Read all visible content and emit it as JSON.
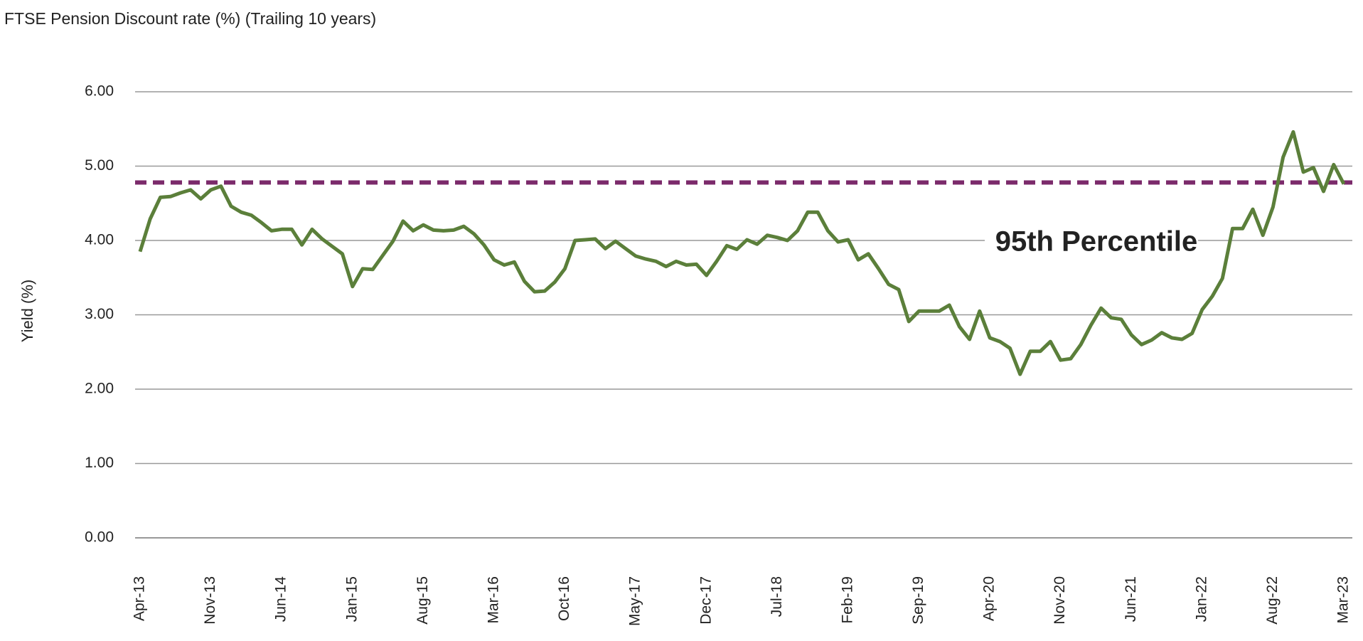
{
  "chart_data": {
    "type": "line",
    "title": "FTSE Pension Discount rate (%) (Trailing 10 years)",
    "y_label": "Yield (%)",
    "categories": [
      "Apr-13",
      null,
      null,
      null,
      null,
      null,
      null,
      "Nov-13",
      null,
      null,
      null,
      null,
      null,
      null,
      "Jun-14",
      null,
      null,
      null,
      null,
      null,
      null,
      "Jan-15",
      null,
      null,
      null,
      null,
      null,
      null,
      "Aug-15",
      null,
      null,
      null,
      null,
      null,
      null,
      "Mar-16",
      null,
      null,
      null,
      null,
      null,
      null,
      "Oct-16",
      null,
      null,
      null,
      null,
      null,
      null,
      "May-17",
      null,
      null,
      null,
      null,
      null,
      null,
      "Dec-17",
      null,
      null,
      null,
      null,
      null,
      null,
      "Jul-18",
      null,
      null,
      null,
      null,
      null,
      null,
      "Feb-19",
      null,
      null,
      null,
      null,
      null,
      null,
      "Sep-19",
      null,
      null,
      null,
      null,
      null,
      null,
      "Apr-20",
      null,
      null,
      null,
      null,
      null,
      null,
      "Nov-20",
      null,
      null,
      null,
      null,
      null,
      null,
      "Jun-21",
      null,
      null,
      null,
      null,
      null,
      null,
      "Jan-22",
      null,
      null,
      null,
      null,
      null,
      null,
      "Aug-22",
      null,
      null,
      null,
      null,
      null,
      null,
      "Mar-23"
    ],
    "series": [
      {
        "name": "FTSE Pension Discount rate",
        "color": "#5b7f3a",
        "values": [
          3.85,
          4.29,
          4.58,
          4.59,
          4.64,
          4.68,
          4.56,
          4.68,
          4.73,
          4.46,
          4.38,
          4.34,
          4.24,
          4.13,
          4.15,
          4.15,
          3.94,
          4.15,
          4.02,
          3.92,
          3.82,
          3.38,
          3.62,
          3.61,
          3.8,
          3.99,
          4.26,
          4.13,
          4.21,
          4.14,
          4.13,
          4.14,
          4.19,
          4.09,
          3.94,
          3.74,
          3.67,
          3.71,
          3.45,
          3.31,
          3.32,
          3.44,
          3.62,
          4.0,
          4.01,
          4.02,
          3.89,
          3.99,
          3.89,
          3.79,
          3.75,
          3.72,
          3.65,
          3.72,
          3.67,
          3.68,
          3.53,
          3.72,
          3.93,
          3.88,
          4.01,
          3.95,
          4.07,
          4.04,
          4.0,
          4.13,
          4.38,
          4.38,
          4.13,
          3.98,
          4.01,
          3.74,
          3.82,
          3.62,
          3.41,
          3.34,
          2.91,
          3.05,
          3.05,
          3.05,
          3.13,
          2.84,
          2.67,
          3.05,
          2.69,
          2.64,
          2.55,
          2.2,
          2.51,
          2.51,
          2.64,
          2.39,
          2.41,
          2.6,
          2.86,
          3.09,
          2.96,
          2.94,
          2.73,
          2.6,
          2.66,
          2.76,
          2.69,
          2.67,
          2.75,
          3.07,
          3.25,
          3.49,
          4.16,
          4.16,
          4.42,
          4.07,
          4.45,
          5.12,
          5.46,
          4.92,
          4.98,
          4.66,
          5.02,
          4.76
        ]
      }
    ],
    "reference_line": {
      "value": 4.78,
      "label": "95th Percentile",
      "color": "#7b2a6b",
      "label_color": "#6b1d4f"
    },
    "ylim": [
      0,
      6
    ],
    "yticks": [
      {
        "value": 0,
        "label": "0.00"
      },
      {
        "value": 1,
        "label": "1.00"
      },
      {
        "value": 2,
        "label": "2.00"
      },
      {
        "value": 3,
        "label": "3.00"
      },
      {
        "value": 4,
        "label": "4.00"
      },
      {
        "value": 5,
        "label": "5.00"
      },
      {
        "value": 6,
        "label": "6.00"
      }
    ],
    "grid": true
  }
}
